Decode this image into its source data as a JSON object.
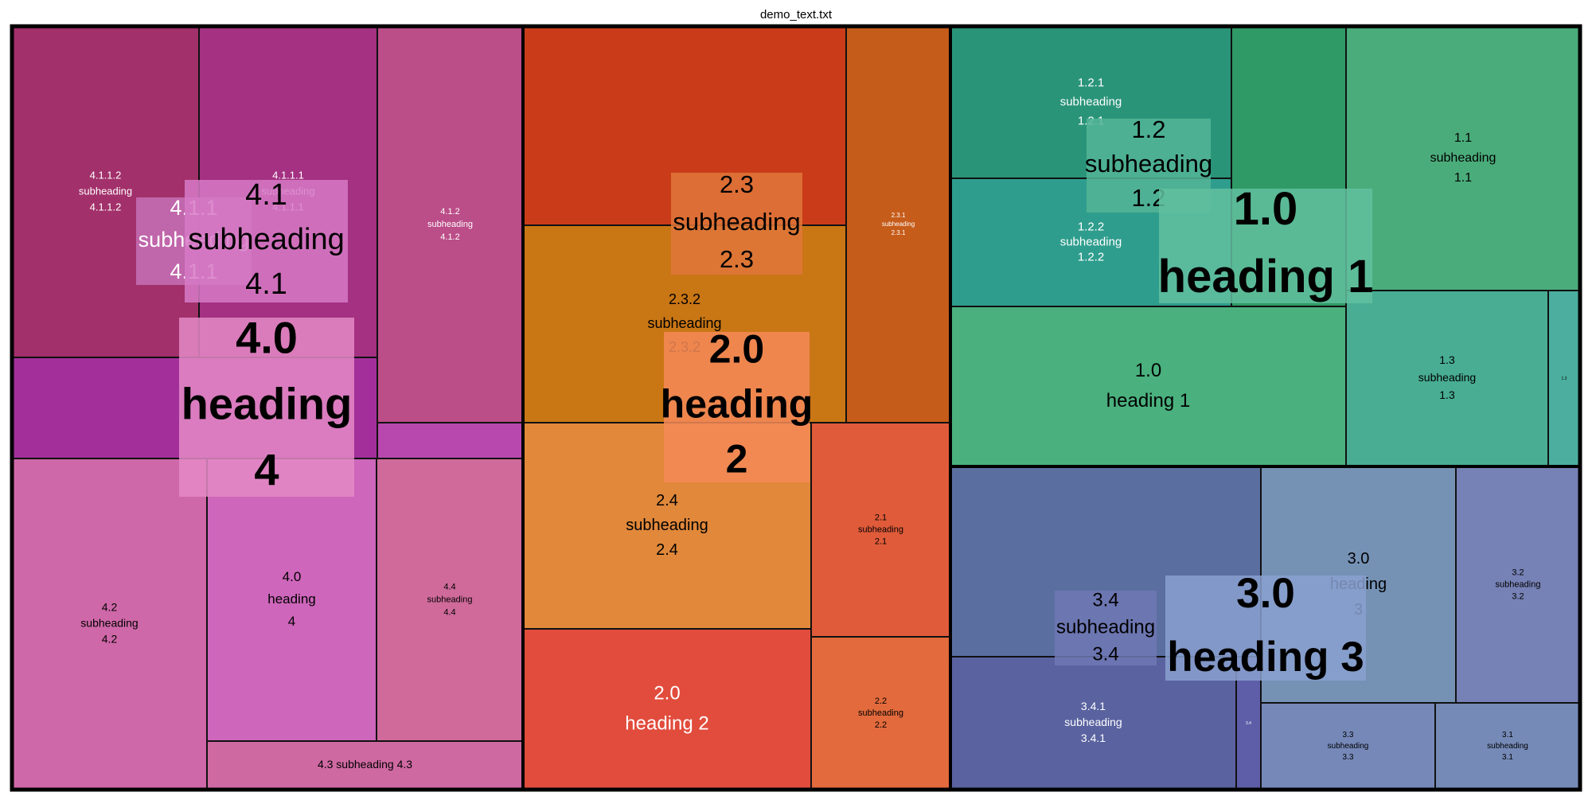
{
  "chart_data": {
    "type": "treemap",
    "title": "demo_text.txt",
    "tiles": [
      {
        "id": "4.1.1.2",
        "lines": [
          "4.1.1.2",
          "subheading",
          "4.1.1.2"
        ],
        "color": "#a2306a",
        "text_color": "#ffffff"
      },
      {
        "id": "4.1.1.1",
        "lines": [
          "4.1.1.1",
          "subheading",
          "4.1.1.1"
        ],
        "color": "#a43182",
        "text_color": "#ffffff"
      },
      {
        "id": "4.1.2",
        "lines": [
          "4.1.2",
          "subheading",
          "4.1.2"
        ],
        "color": "#bb4d88",
        "text_color": "#ffffff"
      },
      {
        "id": "4.1-fill",
        "lines": [],
        "color": "#a3309a",
        "text_color": "#ffffff"
      },
      {
        "id": "4.1.2-fill",
        "lines": [],
        "color": "#b848ae",
        "text_color": "#ffffff"
      },
      {
        "id": "4.2",
        "lines": [
          "4.2",
          "subheading",
          "4.2"
        ],
        "color": "#cf68a8",
        "text_color": "#000000"
      },
      {
        "id": "4.0",
        "lines": [
          "4.0",
          "heading",
          "4"
        ],
        "color": "#ce66bb",
        "text_color": "#000000"
      },
      {
        "id": "4.4",
        "lines": [
          "4.4",
          "subheading",
          "4.4"
        ],
        "color": "#cf6a9a",
        "text_color": "#000000"
      },
      {
        "id": "4.3",
        "lines": [
          "4.3 subheading 4.3"
        ],
        "color": "#cf69a2",
        "text_color": "#000000"
      },
      {
        "id": "2.3-top",
        "lines": [],
        "color": "#ca3c19",
        "text_color": "#ffffff"
      },
      {
        "id": "2.3.1",
        "lines": [
          "2.3.1",
          "subheading",
          "2.3.1"
        ],
        "color": "#c65c1a",
        "text_color": "#ffffff"
      },
      {
        "id": "2.3.2",
        "lines": [
          "2.3.2",
          "subheading",
          "2.3.2"
        ],
        "color": "#c97615",
        "text_color": "#000000"
      },
      {
        "id": "2.4",
        "lines": [
          "2.4",
          "subheading",
          "2.4"
        ],
        "color": "#e1883a",
        "text_color": "#000000"
      },
      {
        "id": "2.1",
        "lines": [
          "2.1",
          "subheading",
          "2.1"
        ],
        "color": "#e05b3a",
        "text_color": "#000000"
      },
      {
        "id": "2.0",
        "lines": [
          "2.0",
          "heading 2"
        ],
        "color": "#e14c3c",
        "text_color": "#ffffff"
      },
      {
        "id": "2.2",
        "lines": [
          "2.2",
          "subheading",
          "2.2"
        ],
        "color": "#e26a3c",
        "text_color": "#000000"
      },
      {
        "id": "1.2.1",
        "lines": [
          "1.2.1",
          "subheading",
          "1.2.1"
        ],
        "color": "#2a9479",
        "text_color": "#ffffff"
      },
      {
        "id": "1.2-fill",
        "lines": [],
        "color": "#2f9a66",
        "text_color": "#ffffff"
      },
      {
        "id": "1.2.2",
        "lines": [
          "1.2.2",
          "subheading",
          "1.2.2"
        ],
        "color": "#2f9d8d",
        "text_color": "#ffffff"
      },
      {
        "id": "1.1",
        "lines": [
          "1.1",
          "subheading",
          "1.1"
        ],
        "color": "#4aac7b",
        "text_color": "#000000"
      },
      {
        "id": "1.0",
        "lines": [
          "1.0",
          "heading 1"
        ],
        "color": "#4ab07e",
        "text_color": "#000000"
      },
      {
        "id": "1.3",
        "lines": [
          "1.3",
          "subheading",
          "1.3"
        ],
        "color": "#48ad93",
        "text_color": "#000000"
      },
      {
        "id": "1.x",
        "lines": [
          "1.3"
        ],
        "color": "#4bae9f",
        "text_color": "#000000"
      },
      {
        "id": "3.4-fill",
        "lines": [],
        "color": "#5a6fa0",
        "text_color": "#ffffff"
      },
      {
        "id": "3.4.1",
        "lines": [
          "3.4.1",
          "subheading",
          "3.4.1"
        ],
        "color": "#5a63a0",
        "text_color": "#ffffff"
      },
      {
        "id": "3.4.x",
        "lines": [
          "3.4"
        ],
        "color": "#5e5ea8",
        "text_color": "#ffffff"
      },
      {
        "id": "3.0",
        "lines": [
          "3.0",
          "heading",
          "3"
        ],
        "color": "#7592b5",
        "text_color": "#000000"
      },
      {
        "id": "3.2",
        "lines": [
          "3.2",
          "subheading",
          "3.2"
        ],
        "color": "#7681b5",
        "text_color": "#000000"
      },
      {
        "id": "3.3",
        "lines": [
          "3.3",
          "subheading",
          "3.3"
        ],
        "color": "#7588b8",
        "text_color": "#000000"
      },
      {
        "id": "3.1",
        "lines": [
          "3.1",
          "subheading",
          "3.1"
        ],
        "color": "#758ab7",
        "text_color": "#000000"
      }
    ],
    "overlay_labels": [
      {
        "id": "ov-4.1.1",
        "lines": [
          "4.1.1",
          "subheading",
          "4.1.1"
        ],
        "color": "#c670b6",
        "text_color": "#ffffff"
      },
      {
        "id": "ov-4.1",
        "lines": [
          "4.1",
          "subheading",
          "4.1"
        ],
        "color": "#d77ac7",
        "text_color": "#000000"
      },
      {
        "id": "ov-4.0",
        "lines": [
          "4.0",
          "heading",
          "4"
        ],
        "color": "#e48ac6",
        "text_color": "#000000"
      },
      {
        "id": "ov-2.3",
        "lines": [
          "2.3",
          "subheading",
          "2.3"
        ],
        "color": "#e0773b",
        "text_color": "#000000"
      },
      {
        "id": "ov-2.0",
        "lines": [
          "2.0",
          "heading",
          "2"
        ],
        "color": "#f58a58",
        "text_color": "#000000"
      },
      {
        "id": "ov-1.2",
        "lines": [
          "1.2",
          "subheading",
          "1.2"
        ],
        "color": "#53b596",
        "text_color": "#000000"
      },
      {
        "id": "ov-1.0",
        "lines": [
          "1.0",
          "heading 1"
        ],
        "color": "#62c09f",
        "text_color": "#000000"
      },
      {
        "id": "ov-3.4",
        "lines": [
          "3.4",
          "subheading",
          "3.4"
        ],
        "color": "#7078b4",
        "text_color": "#000000"
      },
      {
        "id": "ov-3.0",
        "lines": [
          "3.0",
          "heading 3"
        ],
        "color": "#8aa0cf",
        "text_color": "#000000"
      }
    ]
  }
}
